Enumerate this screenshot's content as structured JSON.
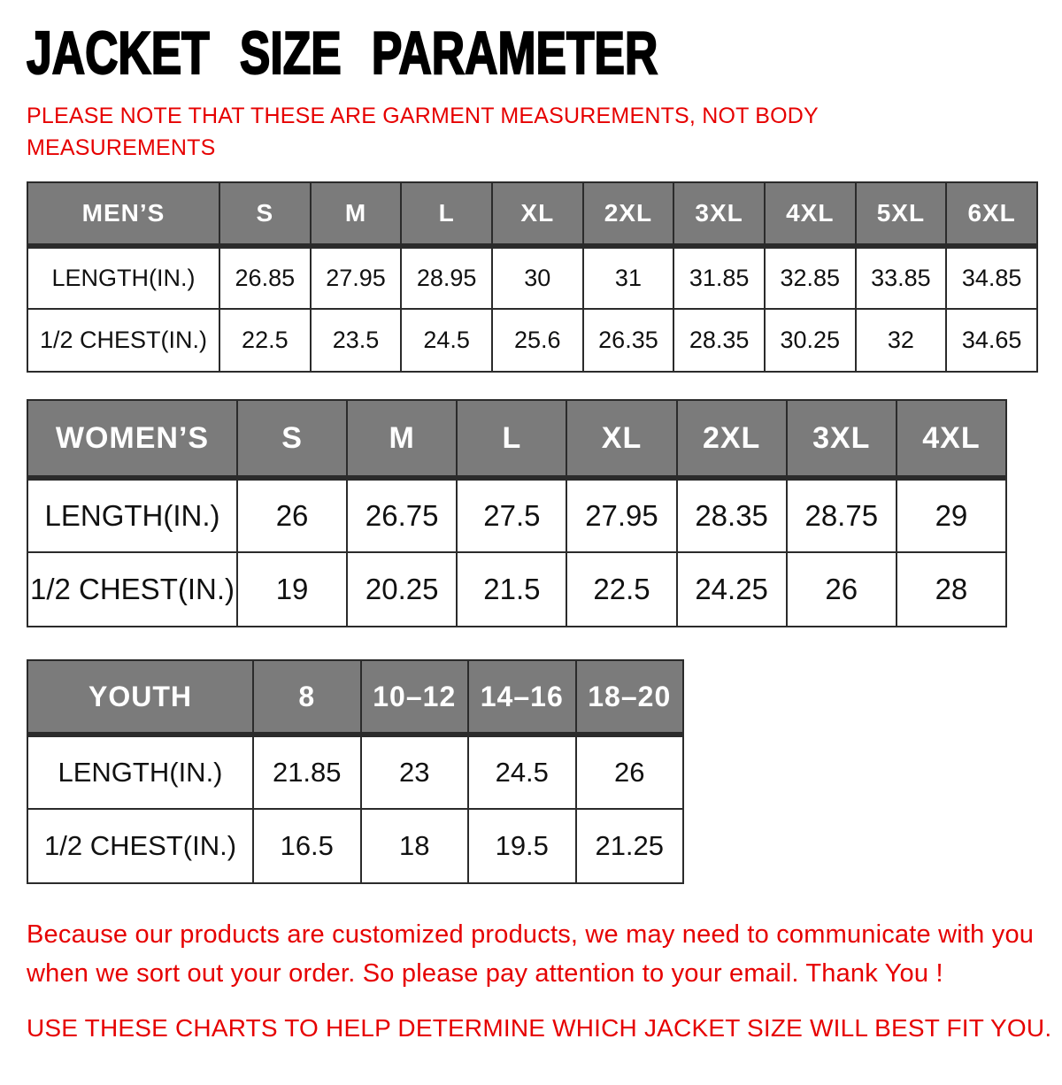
{
  "page": {
    "title": "JACKET SIZE PARAMETER",
    "note_top_lines": [
      "PLEASE NOTE THAT THESE ARE GARMENT MEASUREMENTS, NOT BODY",
      "MEASUREMENTS"
    ],
    "footer_lines": [
      "Because our products are customized products, we may need to communicate with you",
      "when we sort out your order. So please pay attention to your email. Thank You !"
    ],
    "footer_advice": "USE THESE CHARTS TO HELP DETERMINE WHICH JACKET SIZE WILL BEST FIT YOU."
  },
  "colors": {
    "accent_red": "#e60000",
    "header_gray": "#7b7b7b",
    "border_dark": "#2b2b2b",
    "header_text": "#ffffff",
    "body_text": "#111111"
  },
  "tables": [
    {
      "name": "mens",
      "header": [
        "MEN’S",
        "S",
        "M",
        "L",
        "XL",
        "2XL",
        "3XL",
        "4XL",
        "5XL",
        "6XL"
      ],
      "rows": [
        {
          "label": "LENGTH(IN.)",
          "values": [
            "26.85",
            "27.95",
            "28.95",
            "30",
            "31",
            "31.85",
            "32.85",
            "33.85",
            "34.85"
          ]
        },
        {
          "label": "1/2 CHEST(IN.)",
          "values": [
            "22.5",
            "23.5",
            "24.5",
            "25.6",
            "26.35",
            "28.35",
            "30.25",
            "32",
            "34.65"
          ]
        }
      ]
    },
    {
      "name": "womens",
      "header": [
        "WOMEN’S",
        "S",
        "M",
        "L",
        "XL",
        "2XL",
        "3XL",
        "4XL"
      ],
      "rows": [
        {
          "label": "LENGTH(IN.)",
          "values": [
            "26",
            "26.75",
            "27.5",
            "27.95",
            "28.35",
            "28.75",
            "29"
          ]
        },
        {
          "label": "1/2 CHEST(IN.)",
          "values": [
            "19",
            "20.25",
            "21.5",
            "22.5",
            "24.25",
            "26",
            "28"
          ]
        }
      ]
    },
    {
      "name": "youth",
      "header": [
        "YOUTH",
        "8",
        "10–12",
        "14–16",
        "18–20"
      ],
      "rows": [
        {
          "label": "LENGTH(IN.)",
          "values": [
            "21.85",
            "23",
            "24.5",
            "26"
          ]
        },
        {
          "label": "1/2 CHEST(IN.)",
          "values": [
            "16.5",
            "18",
            "19.5",
            "21.25"
          ]
        }
      ]
    }
  ]
}
